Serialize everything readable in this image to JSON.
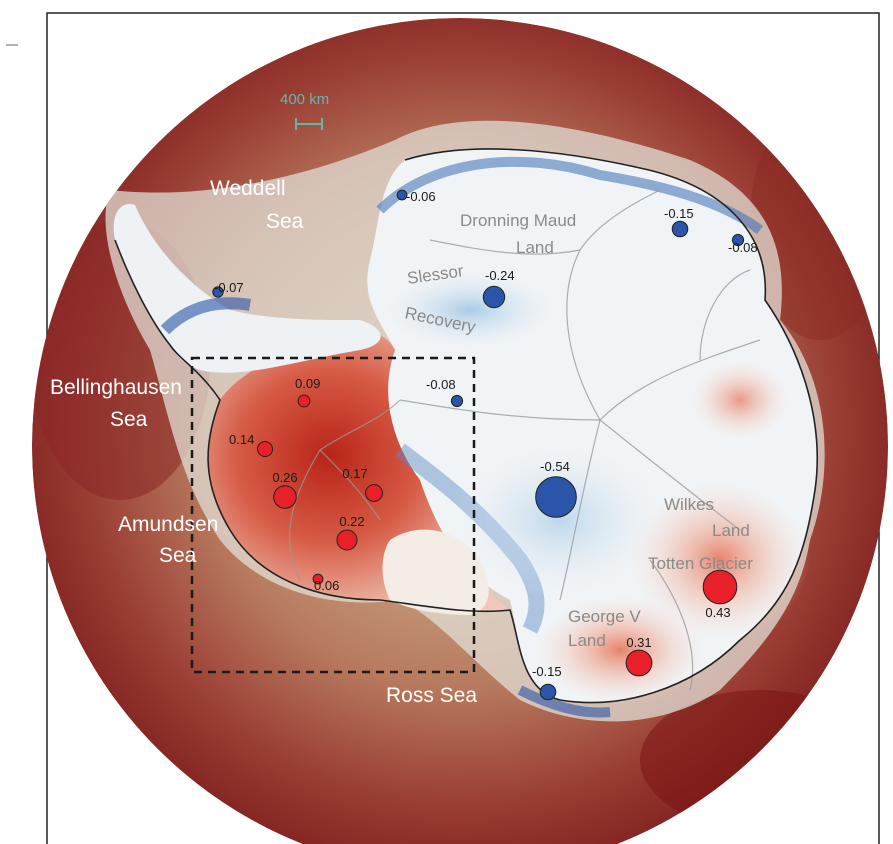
{
  "seas": [
    {
      "id": "weddell",
      "lines": [
        "Weddell",
        "Sea"
      ]
    },
    {
      "id": "bellingshausen",
      "lines": [
        "Bellinghausen",
        "Sea"
      ]
    },
    {
      "id": "amundsen",
      "lines": [
        "Amundsen",
        "Sea"
      ]
    },
    {
      "id": "ross",
      "lines": [
        "Ross Sea"
      ]
    }
  ],
  "regions": [
    {
      "id": "dronning-maud",
      "lines": [
        "Dronning Maud",
        "Land"
      ]
    },
    {
      "id": "slessor",
      "lines": [
        "Slessor"
      ]
    },
    {
      "id": "recovery",
      "lines": [
        "Recovery"
      ]
    },
    {
      "id": "wilkes",
      "lines": [
        "Wilkes",
        "Land"
      ]
    },
    {
      "id": "totten",
      "lines": [
        "Totten Glacier"
      ]
    },
    {
      "id": "george-v",
      "lines": [
        "George V",
        "Land"
      ]
    }
  ],
  "scale_bar": {
    "label": "400 km"
  },
  "markers": [
    {
      "id": "dronning-west",
      "value": -0.06,
      "label": "-0.06"
    },
    {
      "id": "dronning-east",
      "value": -0.15,
      "label": "-0.15"
    },
    {
      "id": "east-coast",
      "value": -0.08,
      "label": "-0.08"
    },
    {
      "id": "slessor",
      "value": -0.24,
      "label": "-0.24"
    },
    {
      "id": "peninsula",
      "value": -0.07,
      "label": "-0.07"
    },
    {
      "id": "ellsworth",
      "value": 0.09,
      "label": "0.09"
    },
    {
      "id": "interior-west",
      "value": -0.08,
      "label": "-0.08"
    },
    {
      "id": "coast-west",
      "value": 0.14,
      "label": "0.14"
    },
    {
      "id": "pine-island",
      "value": 0.26,
      "label": "0.26"
    },
    {
      "id": "thwaites",
      "value": 0.17,
      "label": "0.17"
    },
    {
      "id": "marie-byrd",
      "value": 0.22,
      "label": "0.22"
    },
    {
      "id": "ross-coast",
      "value": 0.06,
      "label": "0.06"
    },
    {
      "id": "east-antarctica",
      "value": -0.54,
      "label": "-0.54"
    },
    {
      "id": "totten",
      "value": 0.43,
      "label": "0.43"
    },
    {
      "id": "george-v",
      "value": 0.31,
      "label": "0.31"
    },
    {
      "id": "victoria",
      "value": -0.15,
      "label": "-0.15"
    }
  ],
  "colors": {
    "positive": "#e8202a",
    "negative": "#2a55a8",
    "ocean": "#9b3a30",
    "frame": "#222222"
  }
}
